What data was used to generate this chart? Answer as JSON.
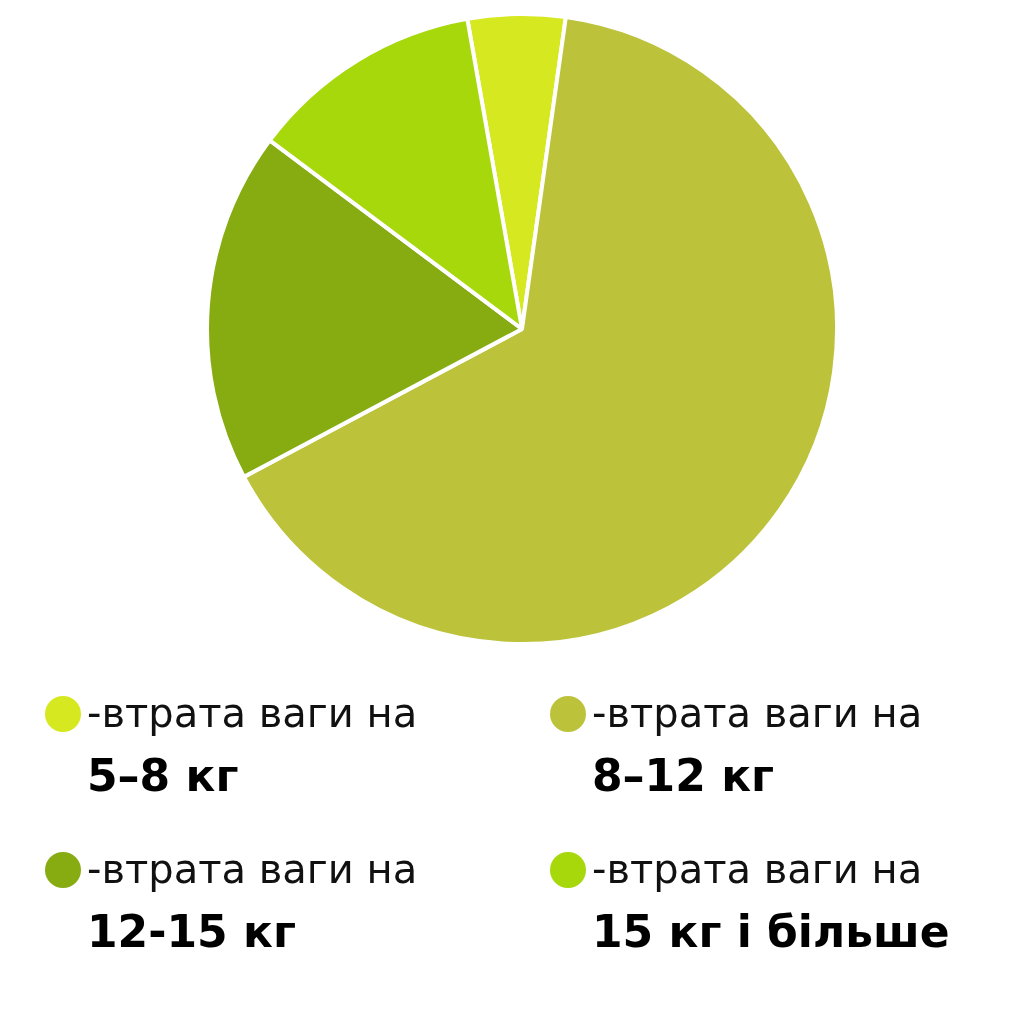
{
  "chart_data": {
    "type": "pie",
    "categories": [
      "-втрата ваги на\n5–8 кг",
      "-втрата ваги на\n8–12 кг",
      "-втрата ваги на\n12-15 кг",
      "-втрата ваги на\n15 кг і більше"
    ],
    "values": [
      5,
      65,
      18,
      12
    ],
    "colors": [
      "#d6e820",
      "#bcc23a",
      "#86ac12",
      "#a6d80c"
    ],
    "legend": "bottom"
  }
}
